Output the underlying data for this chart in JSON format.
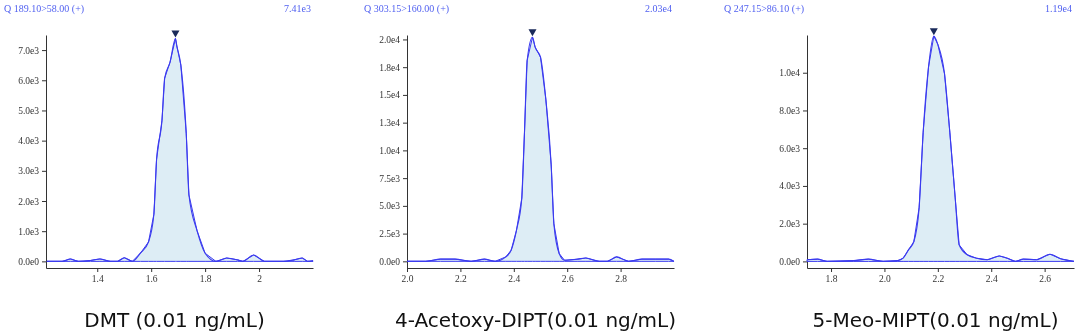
{
  "chart_data": [
    {
      "type": "area",
      "title": "Q 189.10>58.00 (+)",
      "annotations": [
        "7.41e3"
      ],
      "xlabel": "DMT (0.01 ng/mL)",
      "xlim": [
        1.21,
        2.2
      ],
      "xticks": [
        1.4,
        1.6,
        1.8,
        2.0
      ],
      "ylim": [
        -220,
        7500
      ],
      "yticks": [
        {
          "value": 0,
          "label": "0.0e0"
        },
        {
          "value": 1000,
          "label": "1.0e3"
        },
        {
          "value": 2000,
          "label": "2.0e3"
        },
        {
          "value": 3000,
          "label": "3.0e3"
        },
        {
          "value": 4000,
          "label": "4.0e3"
        },
        {
          "value": 5000,
          "label": "5.0e3"
        },
        {
          "value": 6000,
          "label": "6.0e3"
        },
        {
          "value": 7000,
          "label": "7.0e3"
        }
      ],
      "series": [
        {
          "color": "#3b3bef",
          "x": [
            1.213,
            1.27,
            1.3,
            1.33,
            1.375,
            1.41,
            1.45,
            1.475,
            1.5,
            1.53,
            1.56,
            1.59,
            1.61,
            1.62,
            1.64,
            1.65,
            1.67,
            1.69,
            1.695,
            1.71,
            1.73,
            1.74,
            1.77,
            1.8,
            1.84,
            1.88,
            1.92,
            1.94,
            1.98,
            2.02,
            2.09,
            2.13,
            2.16,
            2.18,
            2.2
          ],
          "values": [
            0,
            0,
            80,
            0,
            30,
            80,
            0,
            0,
            120,
            0,
            270,
            640,
            1560,
            3380,
            4670,
            6070,
            6600,
            7380,
            7140,
            6500,
            4240,
            2200,
            1020,
            270,
            0,
            110,
            50,
            0,
            210,
            0,
            0,
            50,
            110,
            0,
            20
          ]
        }
      ]
    },
    {
      "type": "area",
      "title": "Q 303.15>160.00 (+)",
      "annotations": [
        "2.03e4"
      ],
      "xlabel": "4-Acetoxy-DIPT(0.01 ng/mL)",
      "xlim": [
        2.0,
        3.0
      ],
      "xticks": [
        {
          "value": 2.0,
          "label": "2.0"
        },
        2.2,
        2.4,
        2.6,
        2.8
      ],
      "ylim": [
        -600,
        20400
      ],
      "yticks": [
        {
          "value": 0,
          "label": "0.0e0"
        },
        {
          "value": 2500,
          "label": "2.5e3"
        },
        {
          "value": 5000,
          "label": "5.0e3"
        },
        {
          "value": 7500,
          "label": "7.5e3"
        },
        {
          "value": 10000,
          "label": "1.0e4"
        },
        {
          "value": 12500,
          "label": "1.3e4"
        },
        {
          "value": 15000,
          "label": "1.5e4"
        },
        {
          "value": 17500,
          "label": "1.8e4"
        },
        {
          "value": 20000,
          "label": "2.0e4"
        }
      ],
      "series": [
        {
          "color": "#3b3bef",
          "x": [
            2.0,
            2.07,
            2.125,
            2.18,
            2.24,
            2.29,
            2.33,
            2.37,
            2.39,
            2.41,
            2.43,
            2.44,
            2.45,
            2.47,
            2.48,
            2.5,
            2.52,
            2.54,
            2.55,
            2.57,
            2.59,
            2.64,
            2.67,
            2.72,
            2.75,
            2.785,
            2.83,
            2.88,
            2.93,
            2.98,
            3.0
          ],
          "values": [
            0,
            0,
            200,
            200,
            0,
            200,
            0,
            400,
            1000,
            2800,
            5700,
            11600,
            18100,
            20200,
            19300,
            18400,
            14600,
            8700,
            3400,
            700,
            100,
            200,
            300,
            0,
            0,
            400,
            0,
            200,
            200,
            200,
            0
          ]
        }
      ]
    },
    {
      "type": "area",
      "title": "Q 247.15>86.10 (+)",
      "annotations": [
        "1.19e4"
      ],
      "xlabel": "5-Meo-MIPT(0.01 ng/mL)",
      "xlim": [
        1.71,
        2.71
      ],
      "xticks": [
        1.8,
        {
          "value": 2.0,
          "label": "2.0"
        },
        2.2,
        2.4,
        2.6
      ],
      "ylim": [
        -350,
        12000
      ],
      "yticks": [
        {
          "value": 0,
          "label": "0.0e0"
        },
        {
          "value": 2000,
          "label": "2.0e3"
        },
        {
          "value": 4000,
          "label": "4.0e3"
        },
        {
          "value": 6000,
          "label": "6.0e3"
        },
        {
          "value": 8000,
          "label": "8.0e3"
        },
        {
          "value": 10000,
          "label": "1.0e4"
        }
      ],
      "series": [
        {
          "color": "#3b3bef",
          "x": [
            1.71,
            1.75,
            1.785,
            1.885,
            1.94,
            1.995,
            2.05,
            2.07,
            2.09,
            2.11,
            2.13,
            2.145,
            2.165,
            2.185,
            2.2,
            2.225,
            2.245,
            2.265,
            2.28,
            2.31,
            2.345,
            2.385,
            2.43,
            2.46,
            2.49,
            2.52,
            2.57,
            2.62,
            2.66,
            2.71
          ],
          "values": [
            90,
            120,
            0,
            40,
            120,
            0,
            40,
            170,
            610,
            1040,
            2850,
            6830,
            10290,
            11940,
            11500,
            9950,
            6830,
            3370,
            870,
            350,
            170,
            90,
            290,
            170,
            0,
            120,
            90,
            380,
            140,
            0
          ]
        }
      ]
    }
  ]
}
